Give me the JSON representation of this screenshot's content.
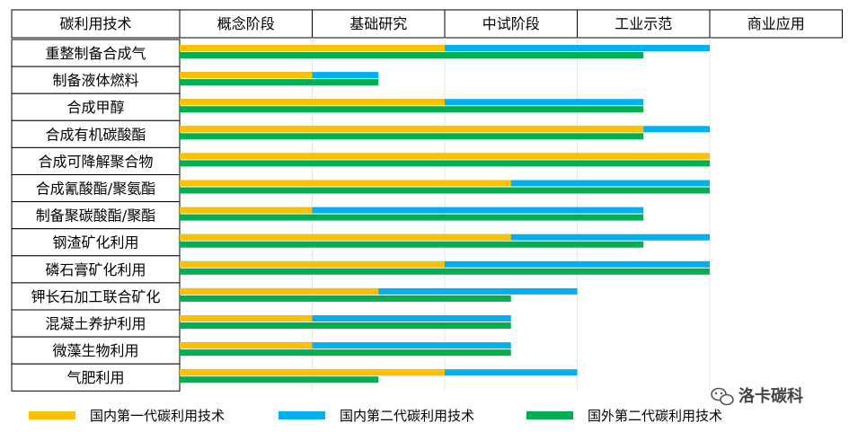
{
  "chart_data": {
    "type": "bar",
    "orientation": "horizontal-gantt",
    "header": {
      "corner": "碳利用技术",
      "stages": [
        "概念阶段",
        "基础研究",
        "中试阶段",
        "工业示范",
        "商业应用"
      ]
    },
    "categories": [
      "重整制备合成气",
      "制备液体燃料",
      "合成甲醇",
      "合成有机碳酸酯",
      "合成可降解聚合物",
      "合成氰酸酯/聚氨酯",
      "制备聚碳酸酯/聚酯",
      "钢渣矿化利用",
      "磷石膏矿化利用",
      "钾长石加工联合矿化",
      "混凝土养护利用",
      "微藻生物利用",
      "气肥利用"
    ],
    "stage_scale": "0 = start of 概念阶段, 5 = end of 商业应用",
    "xlim": [
      0,
      5
    ],
    "series": [
      {
        "name": "国内第一代碳利用技术",
        "color": "#FFC000",
        "values": [
          2.0,
          1.0,
          2.0,
          3.5,
          4.0,
          2.5,
          1.0,
          2.5,
          2.0,
          1.5,
          1.0,
          1.0,
          2.0
        ]
      },
      {
        "name": "国内第二代碳利用技术",
        "color": "#00B0F0",
        "values": [
          4.0,
          1.5,
          3.5,
          4.0,
          4.0,
          4.0,
          3.5,
          4.0,
          4.0,
          3.0,
          2.5,
          2.5,
          3.0
        ]
      },
      {
        "name": "国外第二代碳利用技术",
        "color": "#00B050",
        "values": [
          3.5,
          1.5,
          3.5,
          3.5,
          4.0,
          4.0,
          3.5,
          3.5,
          4.0,
          2.5,
          2.5,
          2.5,
          1.5
        ]
      }
    ],
    "legend_position": "bottom"
  },
  "watermark": {
    "text": "洛卡碳科",
    "icon": "wechat-icon"
  }
}
